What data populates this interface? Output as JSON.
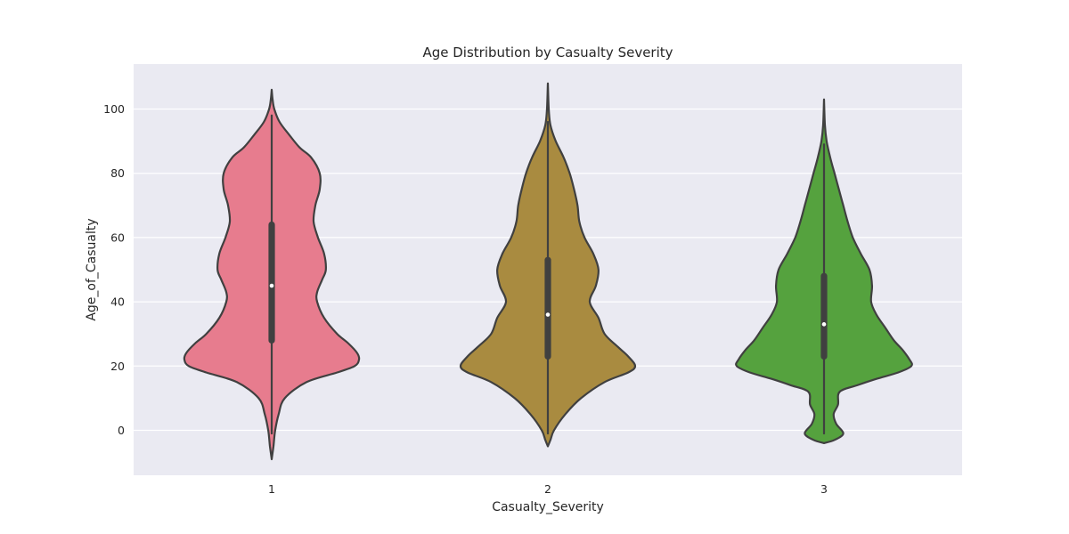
{
  "chart_data": {
    "type": "violin",
    "title": "Age Distribution by Casualty Severity",
    "xlabel": "Casualty_Severity",
    "ylabel": "Age_of_Casualty",
    "ylim": [
      -14,
      114
    ],
    "yticks": [
      0,
      20,
      40,
      60,
      80,
      100
    ],
    "grid": true,
    "categories": [
      "1",
      "2",
      "3"
    ],
    "series": [
      {
        "category": "1",
        "color": "#e77c8e",
        "min": -1,
        "q1": 27,
        "median": 45,
        "q3": 65,
        "max": 98,
        "profile": [
          [
            -9,
            0
          ],
          [
            -5,
            2
          ],
          [
            0,
            4
          ],
          [
            5,
            8
          ],
          [
            10,
            15
          ],
          [
            15,
            40
          ],
          [
            18,
            75
          ],
          [
            20,
            95
          ],
          [
            22,
            100
          ],
          [
            24,
            98
          ],
          [
            27,
            88
          ],
          [
            30,
            75
          ],
          [
            35,
            60
          ],
          [
            40,
            52
          ],
          [
            43,
            52
          ],
          [
            47,
            58
          ],
          [
            50,
            62
          ],
          [
            55,
            60
          ],
          [
            60,
            53
          ],
          [
            65,
            48
          ],
          [
            70,
            50
          ],
          [
            75,
            55
          ],
          [
            80,
            55
          ],
          [
            85,
            45
          ],
          [
            88,
            32
          ],
          [
            92,
            20
          ],
          [
            96,
            9
          ],
          [
            100,
            3
          ],
          [
            103,
            1
          ],
          [
            106,
            0
          ]
        ]
      },
      {
        "category": "2",
        "color": "#a98b40",
        "min": -1,
        "q1": 22,
        "median": 36,
        "q3": 54,
        "max": 96,
        "profile": [
          [
            -5,
            0
          ],
          [
            -3,
            3
          ],
          [
            0,
            7
          ],
          [
            5,
            20
          ],
          [
            10,
            38
          ],
          [
            15,
            65
          ],
          [
            18,
            92
          ],
          [
            20,
            100
          ],
          [
            23,
            92
          ],
          [
            26,
            80
          ],
          [
            30,
            65
          ],
          [
            35,
            58
          ],
          [
            40,
            48
          ],
          [
            45,
            55
          ],
          [
            50,
            58
          ],
          [
            55,
            52
          ],
          [
            60,
            42
          ],
          [
            65,
            36
          ],
          [
            70,
            34
          ],
          [
            75,
            30
          ],
          [
            80,
            25
          ],
          [
            85,
            18
          ],
          [
            90,
            9
          ],
          [
            95,
            3
          ],
          [
            100,
            1
          ],
          [
            108,
            0
          ]
        ]
      },
      {
        "category": "3",
        "color": "#55a23e",
        "min": -1,
        "q1": 22,
        "median": 33,
        "q3": 49,
        "max": 89,
        "profile": [
          [
            -4,
            0
          ],
          [
            -3,
            12
          ],
          [
            -1,
            22
          ],
          [
            2,
            14
          ],
          [
            5,
            11
          ],
          [
            8,
            16
          ],
          [
            12,
            18
          ],
          [
            14,
            38
          ],
          [
            16,
            60
          ],
          [
            18,
            85
          ],
          [
            20,
            100
          ],
          [
            22,
            98
          ],
          [
            25,
            90
          ],
          [
            28,
            80
          ],
          [
            32,
            70
          ],
          [
            36,
            60
          ],
          [
            40,
            54
          ],
          [
            45,
            55
          ],
          [
            50,
            52
          ],
          [
            55,
            42
          ],
          [
            60,
            33
          ],
          [
            65,
            27
          ],
          [
            70,
            22
          ],
          [
            75,
            17
          ],
          [
            80,
            12
          ],
          [
            85,
            7
          ],
          [
            90,
            3
          ],
          [
            95,
            1
          ],
          [
            103,
            0
          ]
        ]
      }
    ]
  }
}
